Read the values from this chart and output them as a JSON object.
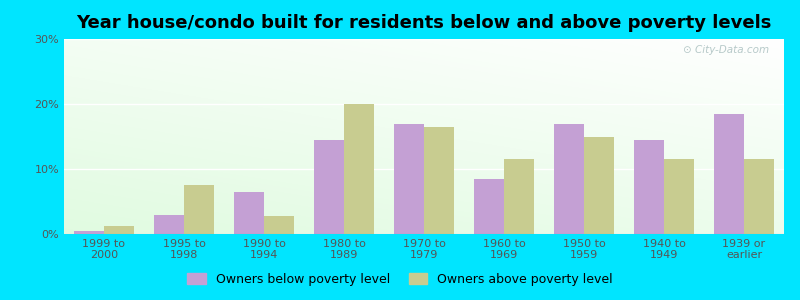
{
  "title": "Year house/condo built for residents below and above poverty levels",
  "categories": [
    "1999 to\n2000",
    "1995 to\n1998",
    "1990 to\n1994",
    "1980 to\n1989",
    "1970 to\n1979",
    "1960 to\n1969",
    "1950 to\n1959",
    "1940 to\n1949",
    "1939 or\nearlier"
  ],
  "below_poverty": [
    0.5,
    3.0,
    6.5,
    14.5,
    17.0,
    8.5,
    17.0,
    14.5,
    18.5
  ],
  "above_poverty": [
    1.2,
    7.5,
    2.8,
    20.0,
    16.5,
    11.5,
    15.0,
    11.5,
    11.5
  ],
  "below_color": "#c4a0d4",
  "above_color": "#c8cc90",
  "ylim": [
    0,
    30
  ],
  "yticks": [
    0,
    10,
    20,
    30
  ],
  "ytick_labels": [
    "0%",
    "10%",
    "20%",
    "30%"
  ],
  "bg_outer": "#00e5ff",
  "grid_color": "#ffffff",
  "bar_width": 0.38,
  "title_fontsize": 13,
  "tick_fontsize": 8,
  "legend_fontsize": 9
}
